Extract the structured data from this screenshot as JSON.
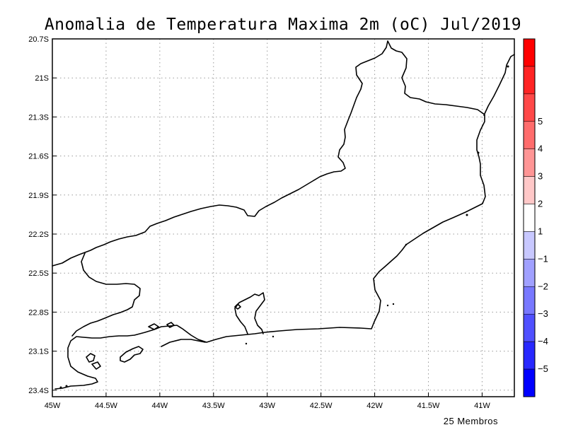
{
  "title": "Anomalia de Temperatura Maxima 2m (oC) Jul/2019",
  "footer": "25 Membros",
  "map": {
    "lon_range": [
      -45,
      -40.7
    ],
    "lat_range": [
      -23.45,
      -20.7
    ],
    "x_ticks": [
      {
        "value": -45,
        "label": "45W"
      },
      {
        "value": -44.5,
        "label": "44.5W"
      },
      {
        "value": -44,
        "label": "44W"
      },
      {
        "value": -43.5,
        "label": "43.5W"
      },
      {
        "value": -43,
        "label": "43W"
      },
      {
        "value": -42.5,
        "label": "42.5W"
      },
      {
        "value": -42,
        "label": "42W"
      },
      {
        "value": -41.5,
        "label": "41.5W"
      },
      {
        "value": -41,
        "label": "41W"
      }
    ],
    "y_ticks": [
      {
        "value": -20.7,
        "label": "20.7S"
      },
      {
        "value": -21,
        "label": "21S"
      },
      {
        "value": -21.3,
        "label": "21.3S"
      },
      {
        "value": -21.6,
        "label": "21.6S"
      },
      {
        "value": -21.9,
        "label": "21.9S"
      },
      {
        "value": -22.2,
        "label": "22.2S"
      },
      {
        "value": -22.5,
        "label": "22.5S"
      },
      {
        "value": -22.8,
        "label": "22.8S"
      },
      {
        "value": -23.1,
        "label": "23.1S"
      },
      {
        "value": -23.4,
        "label": "23.4S"
      }
    ],
    "grid": true,
    "grid_style": "dotted"
  },
  "colorbar": {
    "segments": [
      {
        "color": "#ff0000"
      },
      {
        "color": "#ff2424"
      },
      {
        "color": "#ff4848"
      },
      {
        "color": "#ff6c6c"
      },
      {
        "color": "#ff9595"
      },
      {
        "color": "#ffc8c8"
      },
      {
        "color": "#ffffff"
      },
      {
        "color": "#c8c8ff"
      },
      {
        "color": "#a0a0ff"
      },
      {
        "color": "#7878ff"
      },
      {
        "color": "#5050ff"
      },
      {
        "color": "#2828ff"
      },
      {
        "color": "#0000ff"
      }
    ],
    "labels": [
      "5",
      "4",
      "3",
      "2",
      "1",
      "−1",
      "−2",
      "−3",
      "−4",
      "−5"
    ]
  }
}
